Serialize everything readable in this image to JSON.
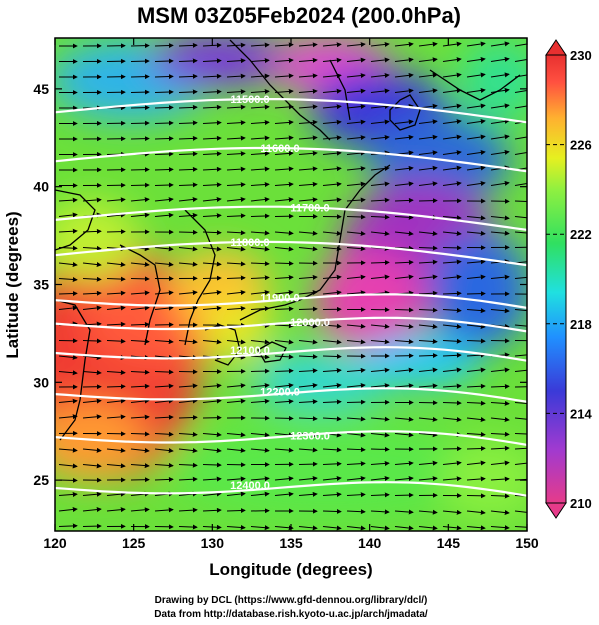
{
  "title": "MSM 03Z05Feb2024 (200.0hPa)",
  "xlabel": "Longitude (degrees)",
  "ylabel": "Latitude  (degrees)",
  "credit_line1": "Drawing by DCL (https://www.gfd-dennou.org/library/dcl/)",
  "credit_line2": "Data from http://database.rish.kyoto-u.ac.jp/arch/jmadata/",
  "x_ticks": [
    "120",
    "125",
    "130",
    "135",
    "140",
    "145",
    "150"
  ],
  "y_ticks": [
    "25",
    "30",
    "35",
    "40",
    "45"
  ],
  "colorbar": {
    "ticks": [
      "230",
      "226",
      "222",
      "218",
      "214",
      "210"
    ],
    "range": [
      210,
      230
    ],
    "colors": [
      "#e63b8a",
      "#a03ad0",
      "#3a3ad8",
      "#2090ff",
      "#20e0e0",
      "#30e060",
      "#90f040",
      "#e6f020",
      "#ffb030",
      "#ff5040",
      "#e83030"
    ]
  },
  "contours": [
    {
      "label": "11500.0",
      "lat": 43.8
    },
    {
      "label": "11600.0",
      "lat": 41.3
    },
    {
      "label": "11700.0",
      "lat": 38.3
    },
    {
      "label": "11800.0",
      "lat": 36.5
    },
    {
      "label": "11900.0",
      "lat": 34.2
    },
    {
      "label": "12000.0",
      "lat": 33.0
    },
    {
      "label": "12100.0",
      "lat": 31.5
    },
    {
      "label": "12200.0",
      "lat": 29.4
    },
    {
      "label": "12300.0",
      "lat": 27.2
    },
    {
      "label": "12400.0",
      "lat": 24.6
    }
  ],
  "chart_data": {
    "type": "heatmap",
    "title": "MSM 03Z05Feb2024 (200.0hPa)",
    "xlabel": "Longitude (degrees)",
    "ylabel": "Latitude  (degrees)",
    "xlim": [
      120,
      150
    ],
    "ylim": [
      22.4,
      47.6
    ],
    "colorbar_range": [
      210,
      230
    ],
    "contour_levels": [
      11500.0,
      11600.0,
      11700.0,
      11800.0,
      11900.0,
      12000.0,
      12100.0,
      12200.0,
      12300.0,
      12400.0
    ]
  }
}
